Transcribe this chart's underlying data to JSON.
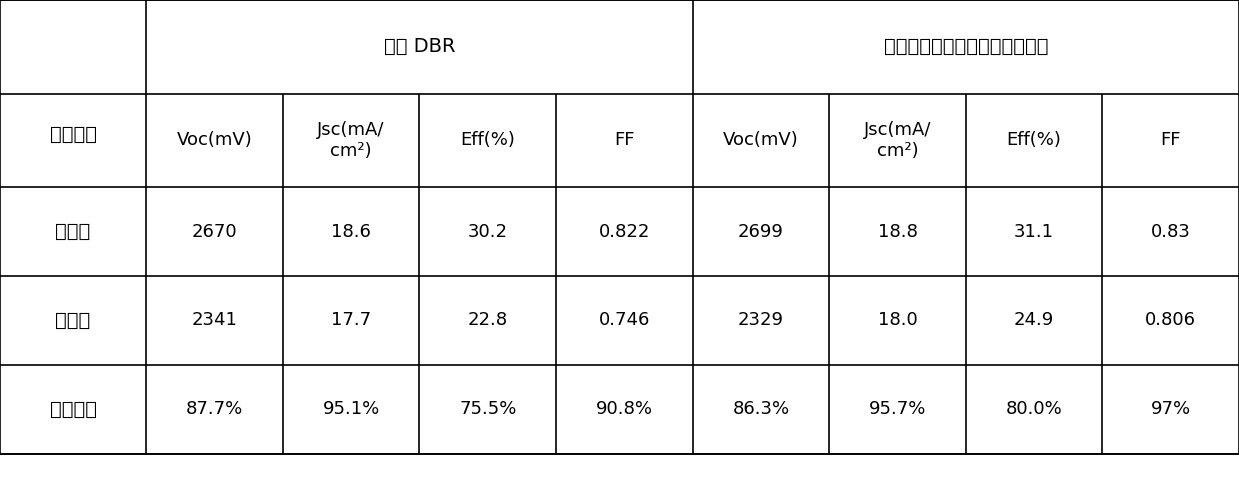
{
  "title_left": "传统 DBR",
  "title_right": "晶格渐变缓冲层（宽谱反射镜）",
  "row_header": "电池类型",
  "col_headers": [
    "Voc(mV)",
    "Jsc(mA/\ncm²)",
    "Eff(%)",
    "FF",
    "Voc(mV)",
    "Jsc(mA/\ncm²)",
    "Eff(%)",
    "FF"
  ],
  "row_labels": [
    "辐照前",
    "辐照后",
    "剩余因子"
  ],
  "data": [
    [
      "2670",
      "18.6",
      "30.2",
      "0.822",
      "2699",
      "18.8",
      "31.1",
      "0.83"
    ],
    [
      "2341",
      "17.7",
      "22.8",
      "0.746",
      "2329",
      "18.0",
      "24.9",
      "0.806"
    ],
    [
      "87.7%",
      "95.1%",
      "75.5%",
      "90.8%",
      "86.3%",
      "95.7%",
      "80.0%",
      "97%"
    ]
  ],
  "bg_color": "#ffffff",
  "line_color": "#000000",
  "text_color": "#000000",
  "header_fontsize": 14,
  "cell_fontsize": 13,
  "row_label_fontsize": 14,
  "fig_width": 12.39,
  "fig_height": 4.8,
  "dpi": 100
}
